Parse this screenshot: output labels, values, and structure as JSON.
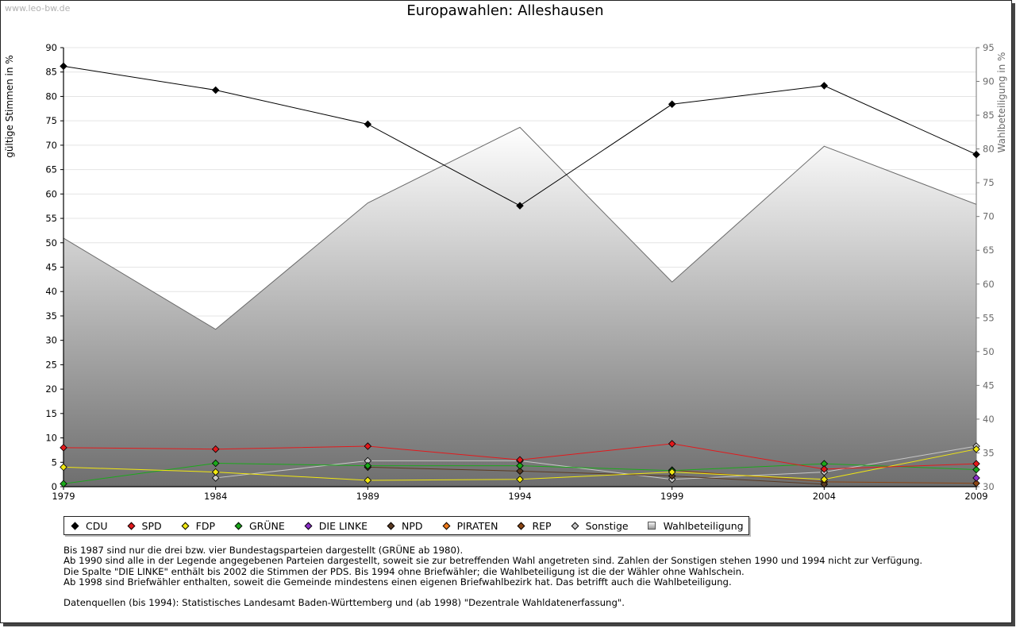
{
  "watermark": "www.leo-bw.de",
  "chart_data": {
    "type": "line",
    "title": "Europawahlen: Alleshausen",
    "ylabel": "gültige Stimmen in %",
    "ylabel_right": "Wahlbeteiligung in %",
    "x": [
      "1979",
      "1984",
      "1989",
      "1994",
      "1999",
      "2004",
      "2009"
    ],
    "ylim": [
      0,
      90
    ],
    "yticks": [
      0,
      5,
      10,
      15,
      20,
      25,
      30,
      35,
      40,
      45,
      50,
      55,
      60,
      65,
      70,
      75,
      80,
      85,
      90
    ],
    "ylim_right": [
      30,
      95
    ],
    "yticks_right": [
      30,
      35,
      40,
      45,
      50,
      55,
      60,
      65,
      70,
      75,
      80,
      85,
      90,
      95
    ],
    "grid": true,
    "series": [
      {
        "name": "CDU",
        "color": "#000000",
        "values": [
          86.2,
          81.3,
          74.3,
          57.6,
          78.4,
          82.2,
          68.1
        ]
      },
      {
        "name": "SPD",
        "color": "#e3191c",
        "values": [
          8.0,
          7.7,
          8.3,
          5.5,
          8.8,
          3.6,
          4.7
        ]
      },
      {
        "name": "FDP",
        "color": "#f2e811",
        "values": [
          4.0,
          3.0,
          1.3,
          1.5,
          3.0,
          1.5,
          7.7
        ]
      },
      {
        "name": "GRÜNE",
        "color": "#1ba91b",
        "values": [
          0.6,
          4.8,
          4.3,
          4.3,
          3.3,
          4.7,
          3.5
        ]
      },
      {
        "name": "DIE LINKE",
        "color": "#8b2fc9",
        "values": [
          null,
          null,
          null,
          null,
          null,
          null,
          1.8
        ]
      },
      {
        "name": "NPD",
        "color": "#5a3a22",
        "values": [
          null,
          null,
          4.0,
          3.2,
          2.2,
          0.5,
          null
        ]
      },
      {
        "name": "PIRATEN",
        "color": "#f07a1a",
        "values": [
          null,
          null,
          null,
          null,
          null,
          null,
          null
        ]
      },
      {
        "name": "REP",
        "color": "#8b4513",
        "values": [
          null,
          null,
          null,
          null,
          3.4,
          1.0,
          0.7
        ]
      },
      {
        "name": "Sonstige",
        "color": "#c8c8c8",
        "values": [
          null,
          1.8,
          5.3,
          5.3,
          1.5,
          3.0,
          8.3
        ]
      }
    ],
    "turnout": {
      "name": "Wahlbeteiligung",
      "values": [
        66.8,
        53.3,
        72.0,
        83.2,
        60.3,
        80.4,
        71.8
      ]
    }
  },
  "legend_items": [
    {
      "name": "CDU",
      "color": "#000000",
      "kind": "diamond"
    },
    {
      "name": "SPD",
      "color": "#e3191c",
      "kind": "diamond"
    },
    {
      "name": "FDP",
      "color": "#f2e811",
      "kind": "diamond"
    },
    {
      "name": "GRÜNE",
      "color": "#1ba91b",
      "kind": "diamond"
    },
    {
      "name": "DIE LINKE",
      "color": "#8b2fc9",
      "kind": "diamond"
    },
    {
      "name": "NPD",
      "color": "#5a3a22",
      "kind": "diamond"
    },
    {
      "name": "PIRATEN",
      "color": "#f07a1a",
      "kind": "diamond"
    },
    {
      "name": "REP",
      "color": "#8b4513",
      "kind": "diamond"
    },
    {
      "name": "Sonstige",
      "color": "#c8c8c8",
      "kind": "diamond"
    },
    {
      "name": "Wahlbeteiligung",
      "color": "#aaaaaa",
      "kind": "square"
    }
  ],
  "notes": [
    "Bis 1987 sind nur die drei bzw. vier Bundestagsparteien dargestellt (GRÜNE ab 1980).",
    "Ab 1990 sind alle in der Legende angegebenen Parteien dargestellt, soweit sie zur betreffenden Wahl angetreten sind. Zahlen der Sonstigen stehen 1990 und 1994 nicht zur Verfügung.",
    "Die Spalte \"DIE LINKE\" enthält bis 2002 die Stimmen der PDS. Bis 1994 ohne Briefwähler; die Wahlbeteiligung ist die der Wähler ohne Wahlschein.",
    "Ab 1998 sind Briefwähler enthalten, soweit die Gemeinde mindestens einen eigenen Briefwahlbezirk hat. Das betrifft auch die Wahlbeteiligung.",
    "",
    "Datenquellen (bis 1994): Statistisches Landesamt Baden-Württemberg und (ab 1998) \"Dezentrale Wahldatenerfassung\"."
  ]
}
